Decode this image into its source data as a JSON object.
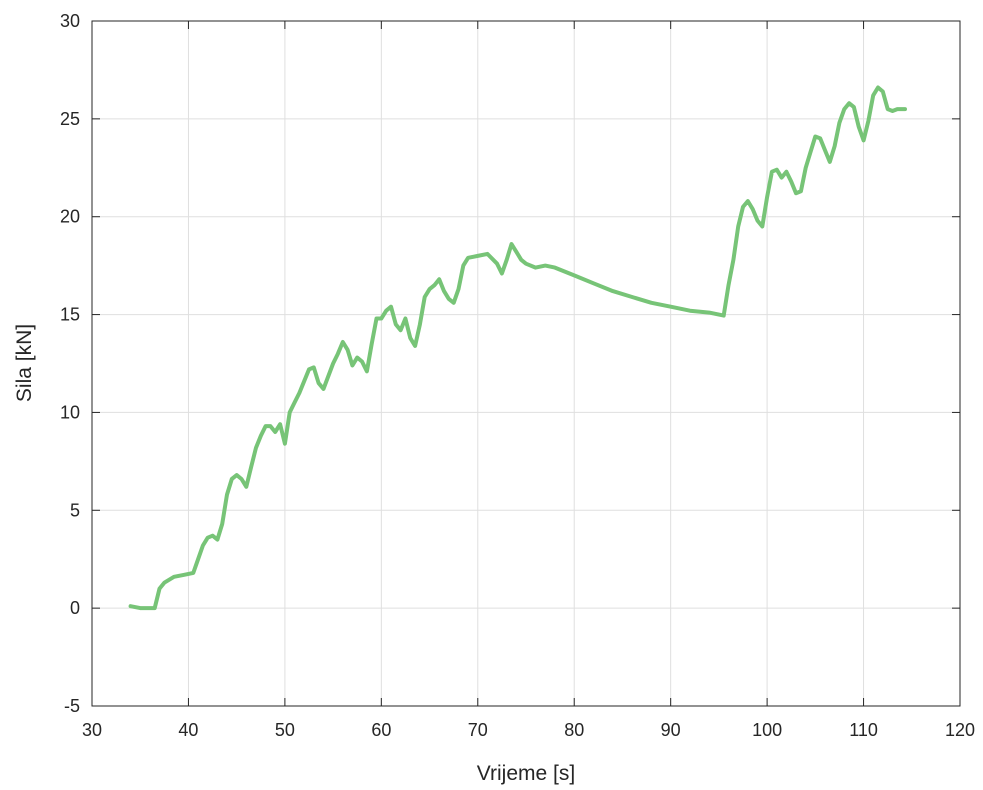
{
  "chart_data": {
    "type": "line",
    "title": "",
    "xlabel": "Vrijeme [s]",
    "ylabel": "Sila [kN]",
    "xlim": [
      30,
      120
    ],
    "ylim": [
      -5,
      30
    ],
    "x_ticks": [
      30,
      40,
      50,
      60,
      70,
      80,
      90,
      100,
      110,
      120
    ],
    "y_ticks": [
      -5,
      0,
      5,
      10,
      15,
      20,
      25,
      30
    ],
    "grid": true,
    "legend": "none",
    "line_color": "#77c477",
    "series": [
      {
        "x": [
          34.0,
          35.0,
          36.5,
          37.0,
          37.5,
          38.5,
          39.5,
          40.5,
          41.0,
          41.5,
          42.0,
          42.5,
          43.0,
          43.5,
          44.0,
          44.5,
          45.0,
          45.5,
          46.0,
          46.5,
          47.0,
          47.5,
          48.0,
          48.5,
          49.0,
          49.5,
          50.0,
          50.5,
          51.0,
          51.5,
          52.0,
          52.5,
          53.0,
          53.5,
          54.0,
          55.0,
          55.5,
          56.0,
          56.5,
          57.0,
          57.5,
          58.0,
          58.5,
          59.0,
          59.5,
          60.0,
          60.5,
          61.0,
          61.5,
          62.0,
          62.5,
          63.0,
          63.5,
          64.0,
          64.5,
          65.0,
          65.5,
          66.0,
          66.5,
          67.0,
          67.5,
          68.0,
          68.5,
          69.0,
          70.0,
          71.0,
          72.0,
          72.5,
          73.0,
          73.5,
          74.0,
          74.5,
          75.0,
          76.0,
          77.0,
          78.0,
          80.0,
          82.0,
          84.0,
          86.0,
          88.0,
          90.0,
          92.0,
          94.0,
          95.0,
          95.5,
          96.0,
          96.5,
          97.0,
          97.5,
          98.0,
          98.5,
          99.0,
          99.5,
          100.0,
          100.5,
          101.0,
          101.5,
          102.0,
          102.5,
          103.0,
          103.5,
          104.0,
          104.5,
          105.0,
          105.5,
          106.0,
          106.5,
          107.0,
          107.5,
          108.0,
          108.5,
          109.0,
          109.5,
          110.0,
          110.5,
          111.0,
          111.5,
          112.0,
          112.5,
          113.0,
          113.5,
          114.0,
          114.3
        ],
        "y": [
          0.1,
          0.0,
          0.0,
          1.0,
          1.3,
          1.6,
          1.7,
          1.8,
          2.5,
          3.2,
          3.6,
          3.7,
          3.5,
          4.3,
          5.8,
          6.6,
          6.8,
          6.6,
          6.2,
          7.2,
          8.2,
          8.8,
          9.3,
          9.3,
          9.0,
          9.4,
          8.4,
          10.0,
          10.5,
          11.0,
          11.6,
          12.2,
          12.3,
          11.5,
          11.2,
          12.5,
          13.0,
          13.6,
          13.2,
          12.4,
          12.8,
          12.6,
          12.1,
          13.5,
          14.8,
          14.8,
          15.2,
          15.4,
          14.5,
          14.2,
          14.8,
          13.8,
          13.4,
          14.5,
          15.9,
          16.3,
          16.5,
          16.8,
          16.2,
          15.8,
          15.6,
          16.3,
          17.5,
          17.9,
          18.0,
          18.1,
          17.6,
          17.1,
          17.8,
          18.6,
          18.2,
          17.8,
          17.6,
          17.4,
          17.5,
          17.4,
          17.0,
          16.6,
          16.2,
          15.9,
          15.6,
          15.4,
          15.2,
          15.1,
          15.0,
          14.95,
          16.5,
          17.8,
          19.5,
          20.5,
          20.8,
          20.4,
          19.8,
          19.5,
          21.0,
          22.3,
          22.4,
          22.0,
          22.3,
          21.8,
          21.2,
          21.3,
          22.5,
          23.3,
          24.1,
          24.0,
          23.4,
          22.8,
          23.6,
          24.8,
          25.5,
          25.8,
          25.6,
          24.6,
          23.9,
          24.9,
          26.2,
          26.6,
          26.4,
          25.5,
          25.4,
          25.5,
          25.5,
          25.5
        ]
      }
    ]
  }
}
